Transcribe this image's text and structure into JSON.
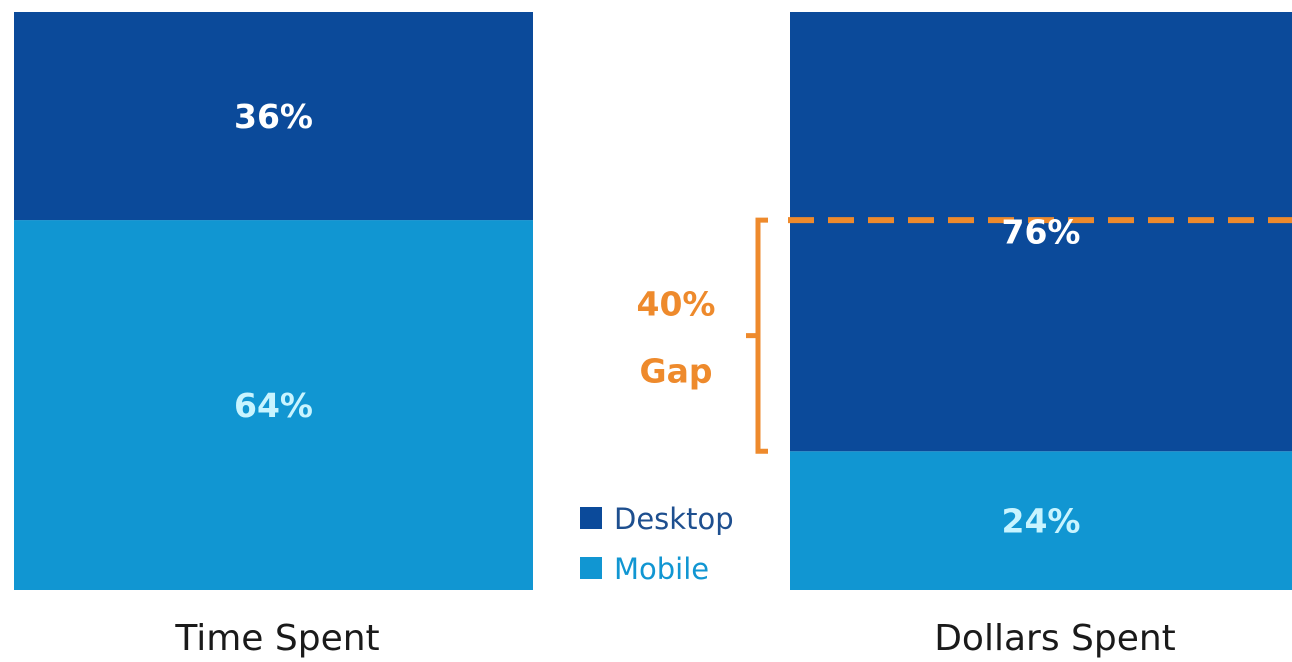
{
  "colors": {
    "desktop": "#0b4a9a",
    "mobile": "#1196d2",
    "desktop_label": "#ffffff",
    "mobile_label": "#c8f4ff",
    "gap_accent": "#ee8a2c",
    "category_text": "#1a1a1a",
    "legend_desktop_text": "#1e4f8f",
    "legend_mobile_text": "#1196d2"
  },
  "legend": {
    "items": [
      {
        "name": "Desktop",
        "color": "#0b4a9a"
      },
      {
        "name": "Mobile",
        "color": "#1196d2"
      }
    ]
  },
  "gap": {
    "line1": "40%",
    "line2": "Gap",
    "value": 40
  },
  "chart_data": {
    "type": "bar",
    "stacked": true,
    "percent": true,
    "categories": [
      "Time Spent",
      "Dollars Spent"
    ],
    "series": [
      {
        "name": "Desktop",
        "values": [
          36,
          76
        ],
        "labels": [
          "36%",
          "76%"
        ]
      },
      {
        "name": "Mobile",
        "values": [
          64,
          24
        ],
        "labels": [
          "64%",
          "24%"
        ]
      }
    ],
    "ylim": [
      0,
      100
    ],
    "grid": false,
    "legend_position": "center"
  }
}
